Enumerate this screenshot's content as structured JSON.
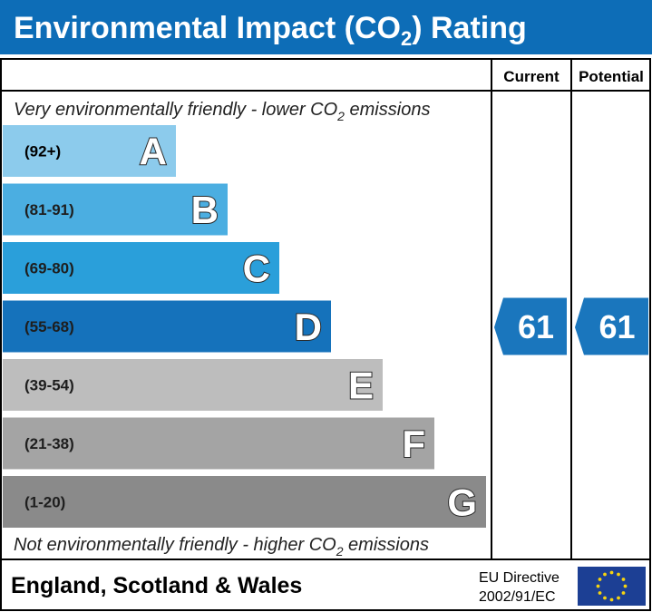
{
  "header": {
    "title_prefix": "Environmental Impact (CO",
    "title_sub": "2",
    "title_suffix": ") Rating"
  },
  "columns": {
    "current": "Current",
    "potential": "Potential"
  },
  "notes": {
    "top_prefix": "Very environmentally friendly - lower CO",
    "top_sub": "2",
    "top_suffix": " emissions",
    "bottom_prefix": "Not environmentally friendly - higher CO",
    "bottom_sub": "2",
    "bottom_suffix": " emissions"
  },
  "footer": {
    "region": "England, Scotland & Wales",
    "directive_line1": "EU Directive",
    "directive_line2": "2002/91/EC"
  },
  "colors": {
    "header_bg": "#0d6db7",
    "arrow": "#1a76bd",
    "A": "#8ccbec",
    "B": "#4baee1",
    "C": "#2a9fda",
    "D": "#1572bb",
    "E": "#bdbdbd",
    "F": "#a4a4a4",
    "G": "#8a8a8a",
    "eu_flag": "#1c3f94",
    "eu_star": "#f5d310"
  },
  "chart_data": {
    "type": "bar",
    "title": "Environmental Impact (CO2) Rating",
    "categories": [
      "A",
      "B",
      "C",
      "D",
      "E",
      "F",
      "G"
    ],
    "ranges": [
      "(92+)",
      "(81-91)",
      "(69-80)",
      "(55-68)",
      "(39-54)",
      "(21-38)",
      "(1-20)"
    ],
    "current": {
      "value": 61,
      "band": "D"
    },
    "potential": {
      "value": 61,
      "band": "D"
    }
  }
}
